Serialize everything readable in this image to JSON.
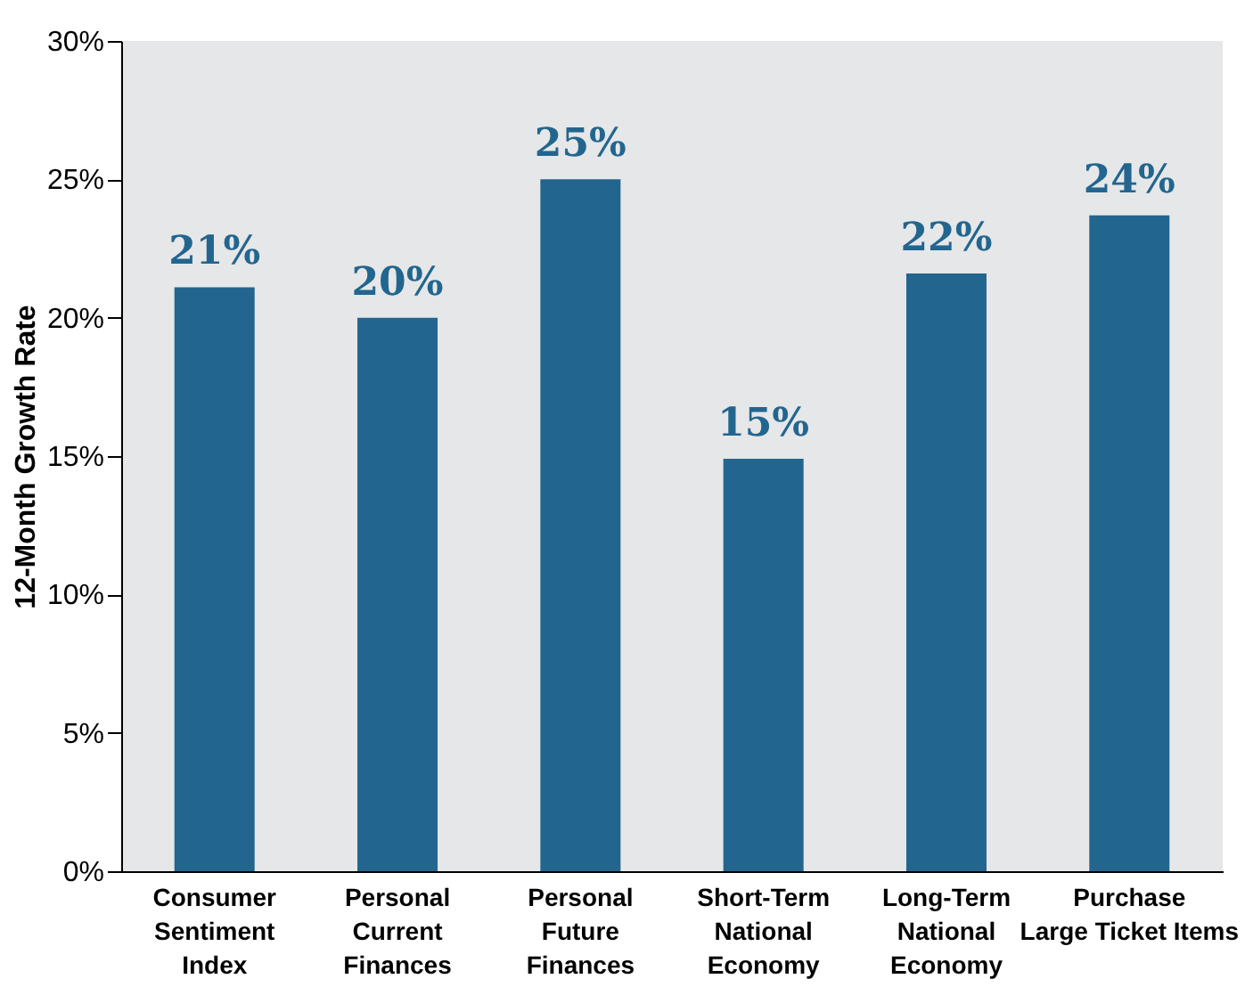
{
  "chart_data": {
    "type": "bar",
    "categories": [
      "Consumer\nSentiment\nIndex",
      "Personal\nCurrent\nFinances",
      "Personal\nFuture\nFinances",
      "Short-Term\nNational\nEconomy",
      "Long-Term\nNational\nEconomy",
      "Purchase\nLarge Ticket Items"
    ],
    "values": [
      21.1,
      20.0,
      25.0,
      14.9,
      21.6,
      23.7
    ],
    "value_labels": [
      "21%",
      "20%",
      "25%",
      "15%",
      "22%",
      "24%"
    ],
    "color": "#22668f",
    "ylabel": "12-Month Growth Rate",
    "ylim": [
      0,
      30
    ],
    "yticks": [
      {
        "value": 0,
        "label": "0%"
      },
      {
        "value": 5,
        "label": "5%"
      },
      {
        "value": 10,
        "label": "10%"
      },
      {
        "value": 15,
        "label": "15%"
      },
      {
        "value": 20,
        "label": "20%"
      },
      {
        "value": 25,
        "label": "25%"
      },
      {
        "value": 30,
        "label": "30%"
      }
    ],
    "grid": false
  }
}
